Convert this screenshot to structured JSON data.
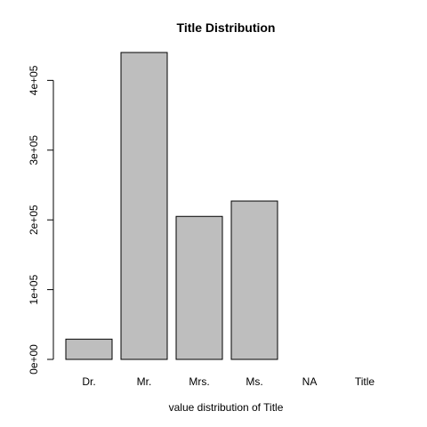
{
  "chart_data": {
    "type": "bar",
    "title": "Title Distribution",
    "xlabel": "value distribution of Title",
    "ylabel": "",
    "categories": [
      "Dr.",
      "Mr.",
      "Mrs.",
      "Ms.",
      "NA",
      "Title"
    ],
    "values": [
      29000,
      440000,
      205000,
      227000,
      0,
      0
    ],
    "ylim": [
      0,
      440000
    ],
    "y_ticks": [
      0,
      100000,
      200000,
      300000,
      400000
    ],
    "y_tick_labels": [
      "0e+00",
      "1e+05",
      "2e+05",
      "3e+05",
      "4e+05"
    ],
    "bar_color": "#bebebe",
    "grid": false,
    "legend": "none"
  }
}
